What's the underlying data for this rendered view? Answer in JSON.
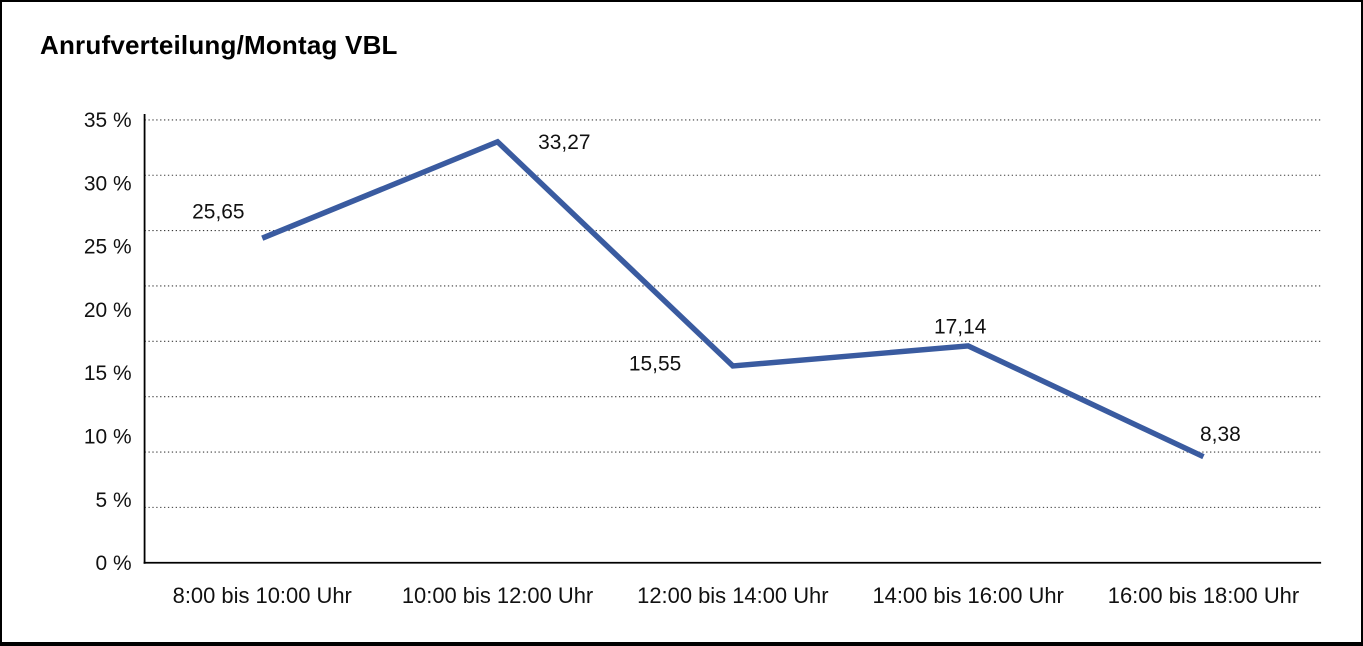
{
  "window": {
    "background": "#ffffff",
    "border_color": "#000000"
  },
  "chart_data": {
    "type": "line",
    "title": "Anrufverteilung/Montag VBL",
    "categories": [
      "8:00 bis 10:00 Uhr",
      "10:00 bis 12:00 Uhr",
      "12:00 bis 14:00 Uhr",
      "14:00 bis 16:00 Uhr",
      "16:00 bis 18:00 Uhr"
    ],
    "values": [
      25.65,
      33.27,
      15.55,
      17.14,
      8.38
    ],
    "data_labels": [
      "25,65",
      "33,27",
      "15,55",
      "17,14",
      "8,38"
    ],
    "y_tick_labels": [
      "35 %",
      "30 %",
      "25 %",
      "20 %",
      "15 %",
      "10 %",
      "5 %",
      "0 %"
    ],
    "ylim": [
      0,
      35
    ],
    "xlabel": "",
    "ylabel": "",
    "legend": "none",
    "grid": "horizontal-dotted",
    "line_color": "#3A5BA0",
    "axis_color": "#000000",
    "gridline_color": "#3c3c3c",
    "text_color": "#111111"
  }
}
